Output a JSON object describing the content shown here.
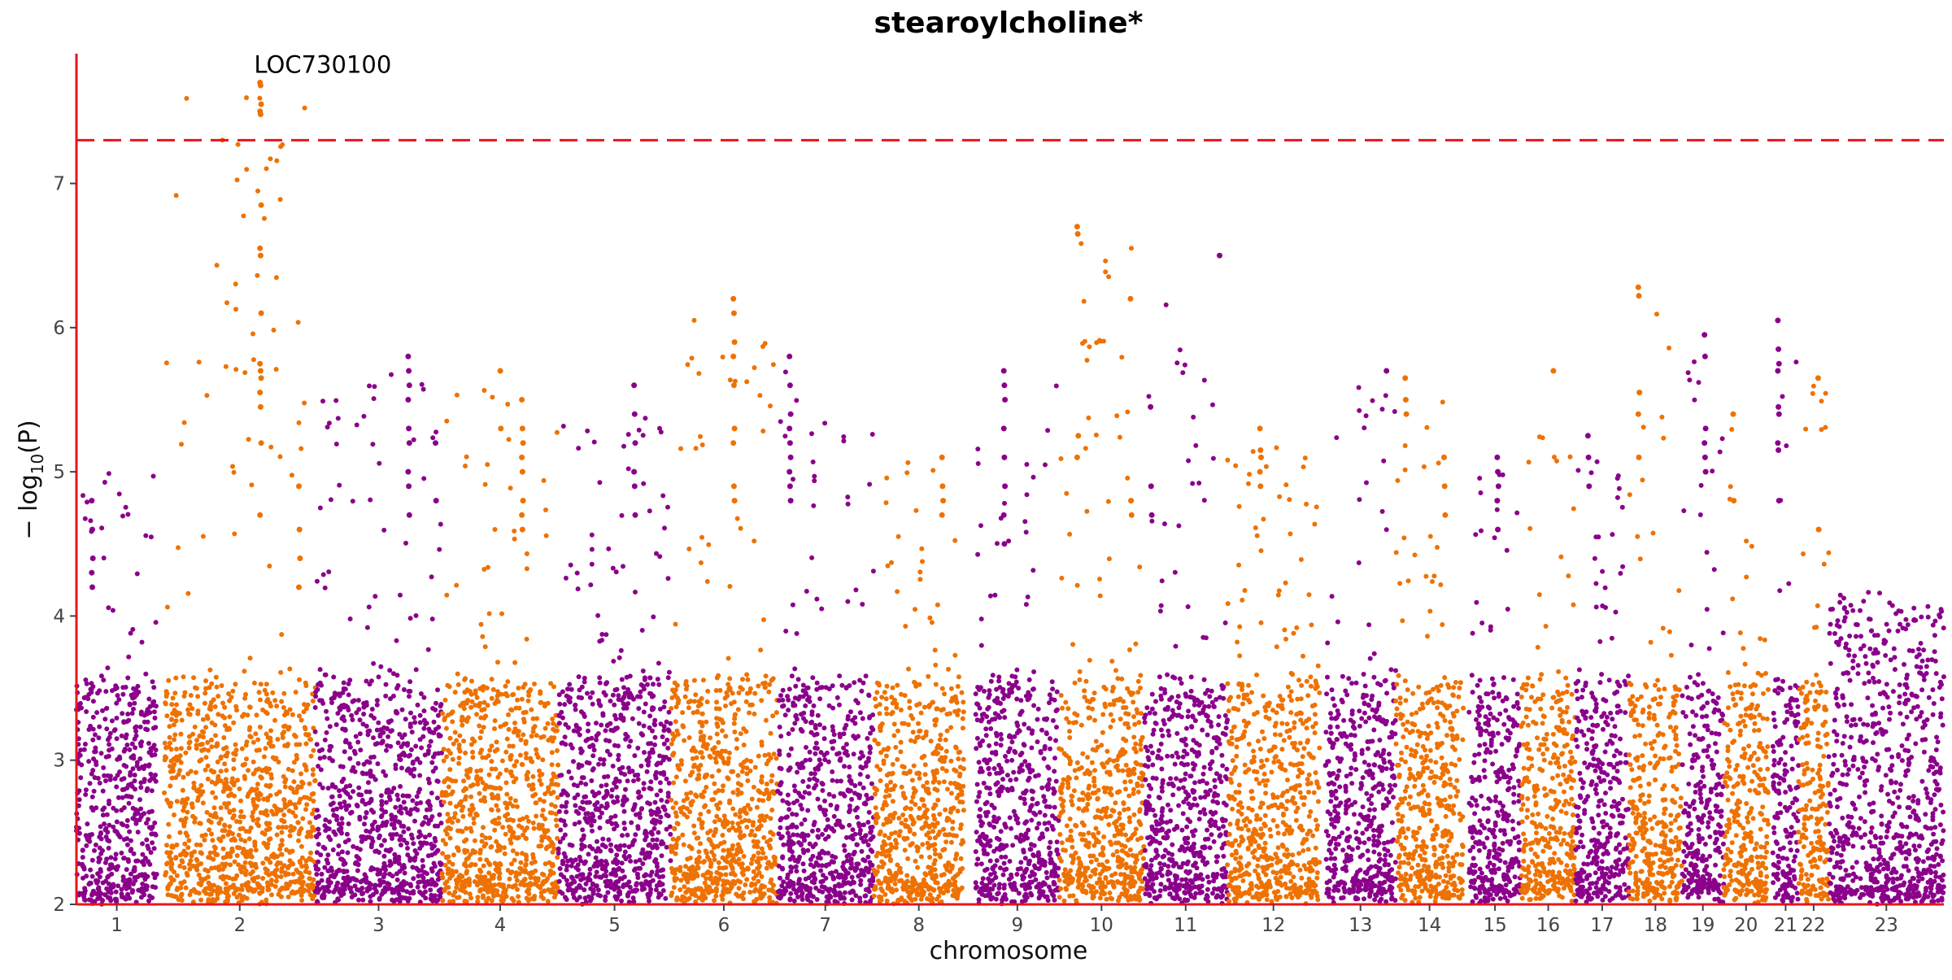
{
  "chart_data": {
    "type": "scatter",
    "subtype": "manhattan",
    "title": "stearoylcholine*",
    "xlabel": "chromosome",
    "ylabel_prefix": "− log",
    "ylabel_sub": "10",
    "ylabel_suffix": "(P)",
    "ylim": [
      2,
      7.9
    ],
    "yticks": [
      2,
      3,
      4,
      5,
      6,
      7
    ],
    "threshold": 7.3,
    "threshold_color": "#e8141b",
    "axis_color": "#e8141b",
    "grid": false,
    "legend": "none",
    "colors": [
      "#8b008b",
      "#ee7203"
    ],
    "chromosomes": [
      {
        "label": "1",
        "start": 0.0,
        "end": 5.6,
        "gap_after": 0.5,
        "max": 5.1
      },
      {
        "label": "2",
        "start": 6.1,
        "end": 16.6,
        "gap_after": 0,
        "max": 7.7
      },
      {
        "label": "3",
        "start": 16.6,
        "end": 25.4,
        "gap_after": 0,
        "max": 5.8
      },
      {
        "label": "4",
        "start": 25.4,
        "end": 33.5,
        "gap_after": 0,
        "max": 5.7
      },
      {
        "label": "5",
        "start": 33.5,
        "end": 41.3,
        "gap_after": 0,
        "max": 5.6
      },
      {
        "label": "6",
        "start": 41.3,
        "end": 48.7,
        "gap_after": 0,
        "max": 6.2
      },
      {
        "label": "7",
        "start": 48.7,
        "end": 55.4,
        "gap_after": 0,
        "max": 5.8
      },
      {
        "label": "8",
        "start": 55.4,
        "end": 61.7,
        "gap_after": 0.2,
        "max": 5.2
      },
      {
        "label": "9",
        "start": 62.5,
        "end": 68.3,
        "gap_after": 0,
        "max": 5.7
      },
      {
        "label": "10",
        "start": 68.3,
        "end": 74.2,
        "gap_after": 0,
        "max": 6.7
      },
      {
        "label": "11",
        "start": 74.2,
        "end": 80.0,
        "gap_after": 0,
        "max": 6.5
      },
      {
        "label": "12",
        "start": 80.0,
        "end": 86.4,
        "gap_after": 0.4,
        "max": 5.3
      },
      {
        "label": "13",
        "start": 86.8,
        "end": 91.7,
        "gap_after": 0,
        "max": 5.7
      },
      {
        "label": "14",
        "start": 91.7,
        "end": 96.4,
        "gap_after": 0.4,
        "max": 5.6
      },
      {
        "label": "15",
        "start": 96.8,
        "end": 100.4,
        "gap_after": 0,
        "max": 5.1
      },
      {
        "label": "16",
        "start": 100.4,
        "end": 104.2,
        "gap_after": 0,
        "max": 5.7
      },
      {
        "label": "17",
        "start": 104.2,
        "end": 107.9,
        "gap_after": 0,
        "max": 5.3
      },
      {
        "label": "18",
        "start": 107.9,
        "end": 111.6,
        "gap_after": 0,
        "max": 6.3
      },
      {
        "label": "19",
        "start": 111.6,
        "end": 114.5,
        "gap_after": 0,
        "max": 6.0
      },
      {
        "label": "20",
        "start": 114.5,
        "end": 117.6,
        "gap_after": 0.3,
        "max": 5.4
      },
      {
        "label": "21",
        "start": 117.9,
        "end": 119.7,
        "gap_after": 0,
        "max": 6.1
      },
      {
        "label": "22",
        "start": 119.7,
        "end": 121.8,
        "gap_after": 0,
        "max": 5.7
      },
      {
        "label": "23",
        "start": 121.8,
        "end": 129.8,
        "gap_after": 0,
        "max": 4.1
      }
    ],
    "peaks": [
      {
        "chr": "1",
        "x": 1.1,
        "values": [
          4.8,
          4.6,
          4.4,
          4.3,
          4.2
        ]
      },
      {
        "chr": "2",
        "x": 12.8,
        "values": [
          7.7,
          7.68,
          7.55,
          7.5,
          7.48,
          6.85,
          6.55,
          6.5,
          6.1,
          5.75,
          5.7,
          5.65,
          5.55,
          5.45,
          5.2,
          4.7
        ]
      },
      {
        "chr": "2",
        "x": 15.5,
        "values": [
          4.9,
          4.6,
          4.4,
          4.2
        ]
      },
      {
        "chr": "3",
        "x": 23.1,
        "values": [
          5.8,
          5.7,
          5.6,
          5.5,
          5.3,
          5.2,
          5.0,
          4.9,
          4.7
        ]
      },
      {
        "chr": "3",
        "x": 25.0,
        "values": [
          5.2,
          4.8
        ]
      },
      {
        "chr": "4",
        "x": 29.5,
        "values": [
          5.7,
          5.3
        ]
      },
      {
        "chr": "4",
        "x": 31.0,
        "values": [
          5.5,
          5.3,
          5.2,
          5.1,
          5.0,
          4.8,
          4.7,
          4.6
        ]
      },
      {
        "chr": "5",
        "x": 38.8,
        "values": [
          5.6,
          5.4,
          5.2,
          5.0,
          4.9,
          4.7
        ]
      },
      {
        "chr": "6",
        "x": 45.7,
        "values": [
          6.2,
          6.1,
          5.9,
          5.8,
          5.6,
          5.3,
          5.2,
          4.9,
          4.8
        ]
      },
      {
        "chr": "7",
        "x": 49.6,
        "values": [
          5.8,
          5.6,
          5.4,
          5.3,
          5.2,
          5.1,
          5.0,
          4.9,
          4.8
        ]
      },
      {
        "chr": "8",
        "x": 60.2,
        "values": [
          5.1,
          4.9,
          4.8,
          4.7
        ]
      },
      {
        "chr": "9",
        "x": 64.5,
        "values": [
          5.7,
          5.6,
          5.5,
          5.3,
          5.1,
          4.9,
          4.7,
          4.5
        ]
      },
      {
        "chr": "10",
        "x": 69.6,
        "values": [
          6.7,
          6.65,
          5.25,
          5.1
        ]
      },
      {
        "chr": "10",
        "x": 73.3,
        "values": [
          6.2,
          4.8,
          4.7
        ]
      },
      {
        "chr": "11",
        "x": 74.7,
        "values": [
          5.45,
          4.9,
          4.7
        ]
      },
      {
        "chr": "11",
        "x": 79.5,
        "values": [
          6.5
        ]
      },
      {
        "chr": "12",
        "x": 82.3,
        "values": [
          5.3,
          5.15,
          5.1,
          5.0,
          4.9
        ]
      },
      {
        "chr": "13",
        "x": 91.1,
        "values": [
          5.7
        ]
      },
      {
        "chr": "14",
        "x": 92.4,
        "values": [
          5.65,
          5.5,
          5.4
        ]
      },
      {
        "chr": "14",
        "x": 95.1,
        "values": [
          5.1,
          4.9,
          4.7
        ]
      },
      {
        "chr": "15",
        "x": 98.8,
        "values": [
          5.1,
          5.0,
          4.9,
          4.8,
          4.6
        ]
      },
      {
        "chr": "16",
        "x": 102.7,
        "values": [
          5.7
        ]
      },
      {
        "chr": "17",
        "x": 105.1,
        "values": [
          5.25,
          5.1,
          4.9
        ]
      },
      {
        "chr": "18",
        "x": 108.6,
        "values": [
          6.28,
          6.22,
          5.55,
          5.4,
          5.1
        ]
      },
      {
        "chr": "19",
        "x": 113.2,
        "values": [
          5.95,
          5.8,
          5.3,
          5.2,
          5.1,
          5.0
        ]
      },
      {
        "chr": "20",
        "x": 115.2,
        "values": [
          5.4,
          4.8
        ]
      },
      {
        "chr": "21",
        "x": 118.3,
        "values": [
          6.05,
          5.85,
          5.75,
          5.7,
          5.45,
          5.4,
          5.2,
          5.15,
          4.8
        ]
      },
      {
        "chr": "22",
        "x": 121.1,
        "values": [
          5.65,
          4.6
        ]
      }
    ],
    "annotations": [
      {
        "text": "LOC730100",
        "chr": "2",
        "x": 12.8,
        "y": 7.7
      }
    ]
  }
}
